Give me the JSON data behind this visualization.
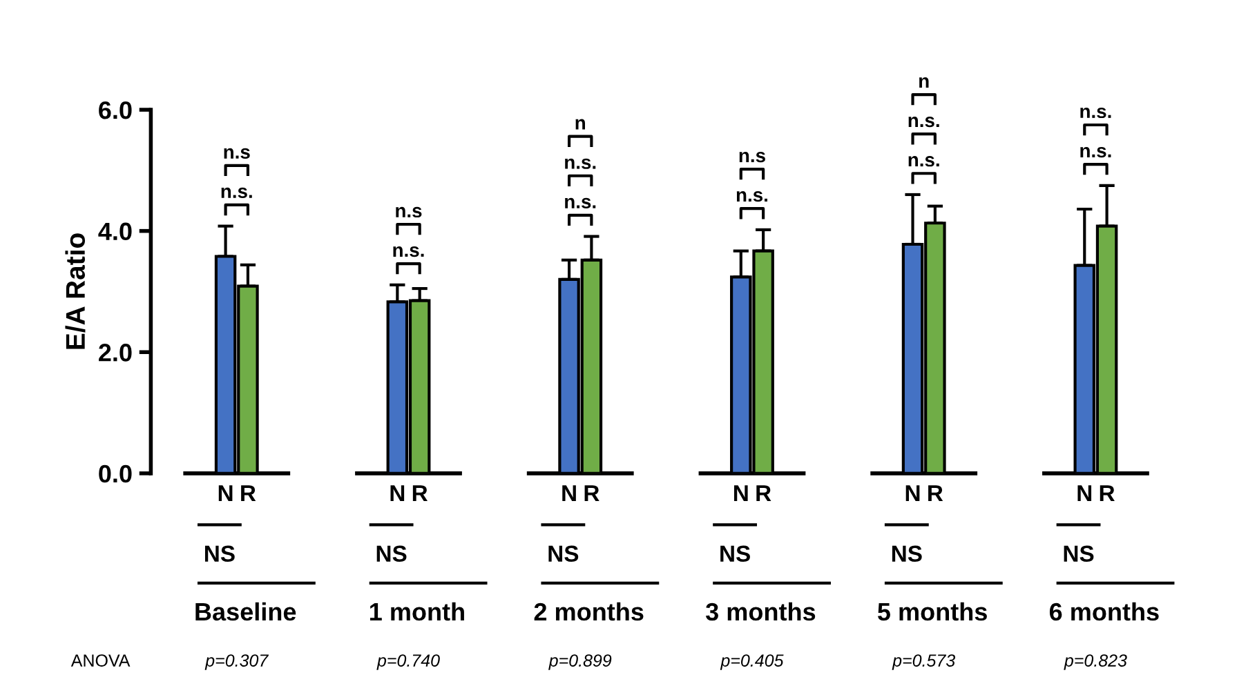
{
  "chart_data": {
    "type": "bar",
    "ylabel": "E/A Ratio",
    "categories": [
      "Baseline",
      "1 month",
      "2 months",
      "3 months",
      "5 months",
      "6 months"
    ],
    "series": [
      {
        "name": "N",
        "color": "#4472c4",
        "values": [
          3.58,
          2.83,
          3.2,
          3.24,
          3.78,
          3.43
        ],
        "errors": [
          0.5,
          0.28,
          0.32,
          0.43,
          0.82,
          0.93
        ]
      },
      {
        "name": "R",
        "color": "#70ad47",
        "values": [
          3.09,
          2.85,
          3.52,
          3.67,
          4.13,
          4.08
        ],
        "errors": [
          0.35,
          0.2,
          0.39,
          0.35,
          0.28,
          0.67
        ]
      }
    ],
    "ylim": [
      0,
      6
    ],
    "yticks": [
      {
        "value": 0,
        "label": "0.0"
      },
      {
        "value": 2,
        "label": "2.0"
      },
      {
        "value": 4,
        "label": "4.0"
      },
      {
        "value": 6,
        "label": "6.0"
      }
    ],
    "grid": false,
    "legend": "bottom",
    "annotations": [
      "n.s.",
      "n.s",
      "n.s.",
      "n.s",
      "n.s.",
      "n.s.",
      "n",
      "n.s.",
      "n.s",
      "n.s.",
      "n.s.",
      "n",
      "n.s.",
      "n.s.",
      "NS",
      "NS",
      "NS",
      "NS",
      "NS",
      "NS",
      "ANOVA",
      "p=0.307",
      "p=0.740",
      "p=0.899",
      "p=0.405",
      "p=0.573",
      "p=0.823"
    ]
  }
}
